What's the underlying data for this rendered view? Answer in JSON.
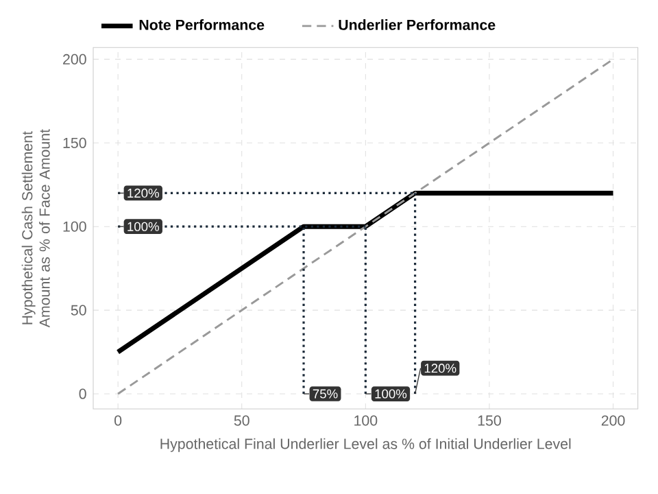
{
  "chart_data": {
    "type": "line",
    "xlabel": "Hypothetical Final Underlier Level as % of Initial Underlier Level",
    "ylabel": "Hypothetical Cash Settlement Amount as % of Face Amount",
    "xlim": [
      -10,
      210
    ],
    "ylim": [
      -9,
      207
    ],
    "xticks": [
      0,
      50,
      100,
      150,
      200
    ],
    "yticks": [
      0,
      50,
      100,
      150,
      200
    ],
    "grid": true,
    "legend": "top",
    "series": [
      {
        "name": "Note Performance",
        "color": "#000000",
        "line_style": "solid",
        "x": [
          0,
          75,
          100,
          120,
          200
        ],
        "values": [
          25,
          100,
          100,
          120,
          120
        ]
      },
      {
        "name": "Underlier Performance",
        "color": "#999999",
        "line_style": "dashed",
        "x": [
          0,
          200
        ],
        "values": [
          0,
          200
        ]
      },
      {
        "color": "#1c2b3a",
        "line_style": "dotted",
        "x": [
          0,
          120
        ],
        "values": [
          120,
          120
        ]
      },
      {
        "color": "#1c2b3a",
        "line_style": "dotted",
        "x": [
          0,
          100
        ],
        "values": [
          100,
          100
        ]
      },
      {
        "color": "#1c2b3a",
        "line_style": "dotted",
        "x": [
          75,
          75
        ],
        "values": [
          0,
          100
        ]
      },
      {
        "color": "#1c2b3a",
        "line_style": "dotted",
        "x": [
          100,
          100
        ],
        "values": [
          0,
          100
        ]
      },
      {
        "color": "#1c2b3a",
        "line_style": "dotted",
        "x": [
          120,
          120
        ],
        "values": [
          0,
          120
        ]
      }
    ],
    "annotations": [
      {
        "text": "120%",
        "x": 0,
        "y": 120
      },
      {
        "text": "100%",
        "x": 0,
        "y": 100
      },
      {
        "text": "75%",
        "x": 75,
        "y": 0
      },
      {
        "text": "100%",
        "x": 100,
        "y": 0
      },
      {
        "text": "120%",
        "x": 120,
        "y": 0
      }
    ]
  }
}
